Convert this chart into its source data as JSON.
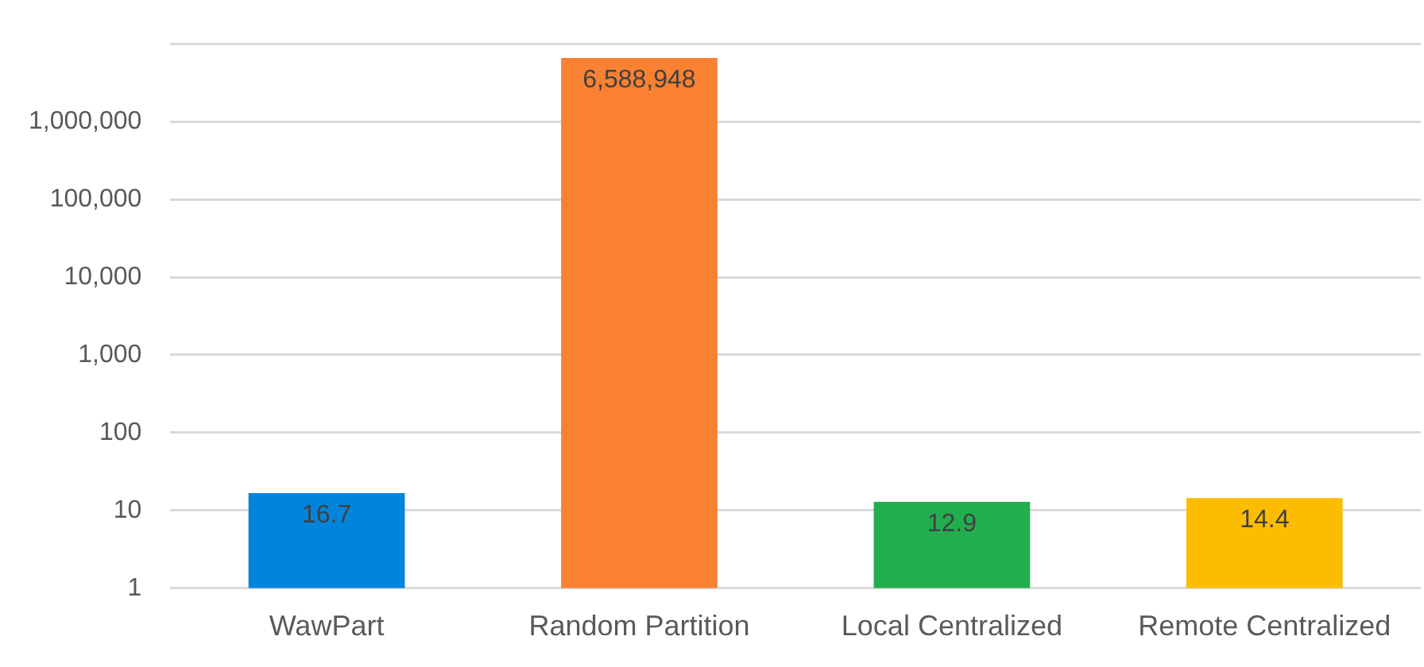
{
  "chart_data": {
    "type": "bar",
    "categories": [
      "WawPart",
      "Random Partition",
      "Local Centralized",
      "Remote Centralized"
    ],
    "values": [
      16.7,
      6588948,
      12.9,
      14.4
    ],
    "colors": [
      "#0084dc",
      "#f98131",
      "#22ae4f",
      "#fdbc00"
    ],
    "log": true,
    "ylim": [
      1,
      10000000
    ],
    "yticks": [
      {
        "value": 1,
        "label": "1"
      },
      {
        "value": 10,
        "label": "10"
      },
      {
        "value": 100,
        "label": "100"
      },
      {
        "value": 1000,
        "label": "1,000"
      },
      {
        "value": 10000,
        "label": "10,000"
      },
      {
        "value": 100000,
        "label": "100,000"
      },
      {
        "value": 1000000,
        "label": "1,000,000"
      },
      {
        "value": 10000000,
        "label": null
      }
    ],
    "grid": "y",
    "legend": false,
    "value_labels": [
      "16.7",
      "6,588,948",
      "12.9",
      "14.4"
    ]
  }
}
